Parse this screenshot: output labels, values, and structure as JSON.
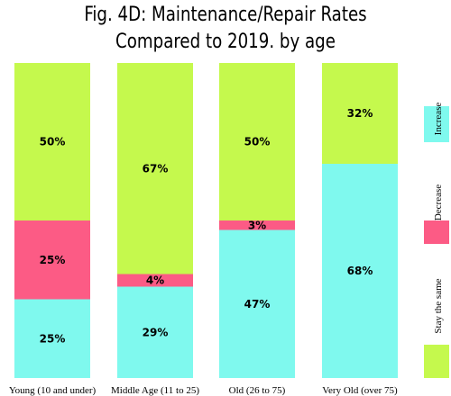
{
  "chart_data": {
    "type": "bar",
    "stacked": true,
    "title_line1": "Fig. 4D: Maintenance/Repair Rates",
    "title_line2": "Compared to 2019. by age",
    "categories": [
      "Young (10 and under)",
      "Middle Age (11 to 25)",
      "Old (26 to 75)",
      "Very Old (over 75)"
    ],
    "series": [
      {
        "name": "Increase",
        "color": "#7ff9ee",
        "values": [
          25,
          29,
          47,
          68
        ],
        "labels": [
          "25%",
          "29%",
          "47%",
          "68%"
        ]
      },
      {
        "name": "Decrease",
        "color": "#fc5b85",
        "values": [
          25,
          4,
          3,
          0
        ],
        "labels": [
          "25%",
          "4%",
          "3%",
          ""
        ]
      },
      {
        "name": "Stay the same",
        "color": "#c5f94d",
        "values": [
          50,
          67,
          50,
          32
        ],
        "labels": [
          "50%",
          "67%",
          "50%",
          "32%"
        ]
      }
    ],
    "ylim": [
      0,
      100
    ],
    "legend_position": "right"
  }
}
